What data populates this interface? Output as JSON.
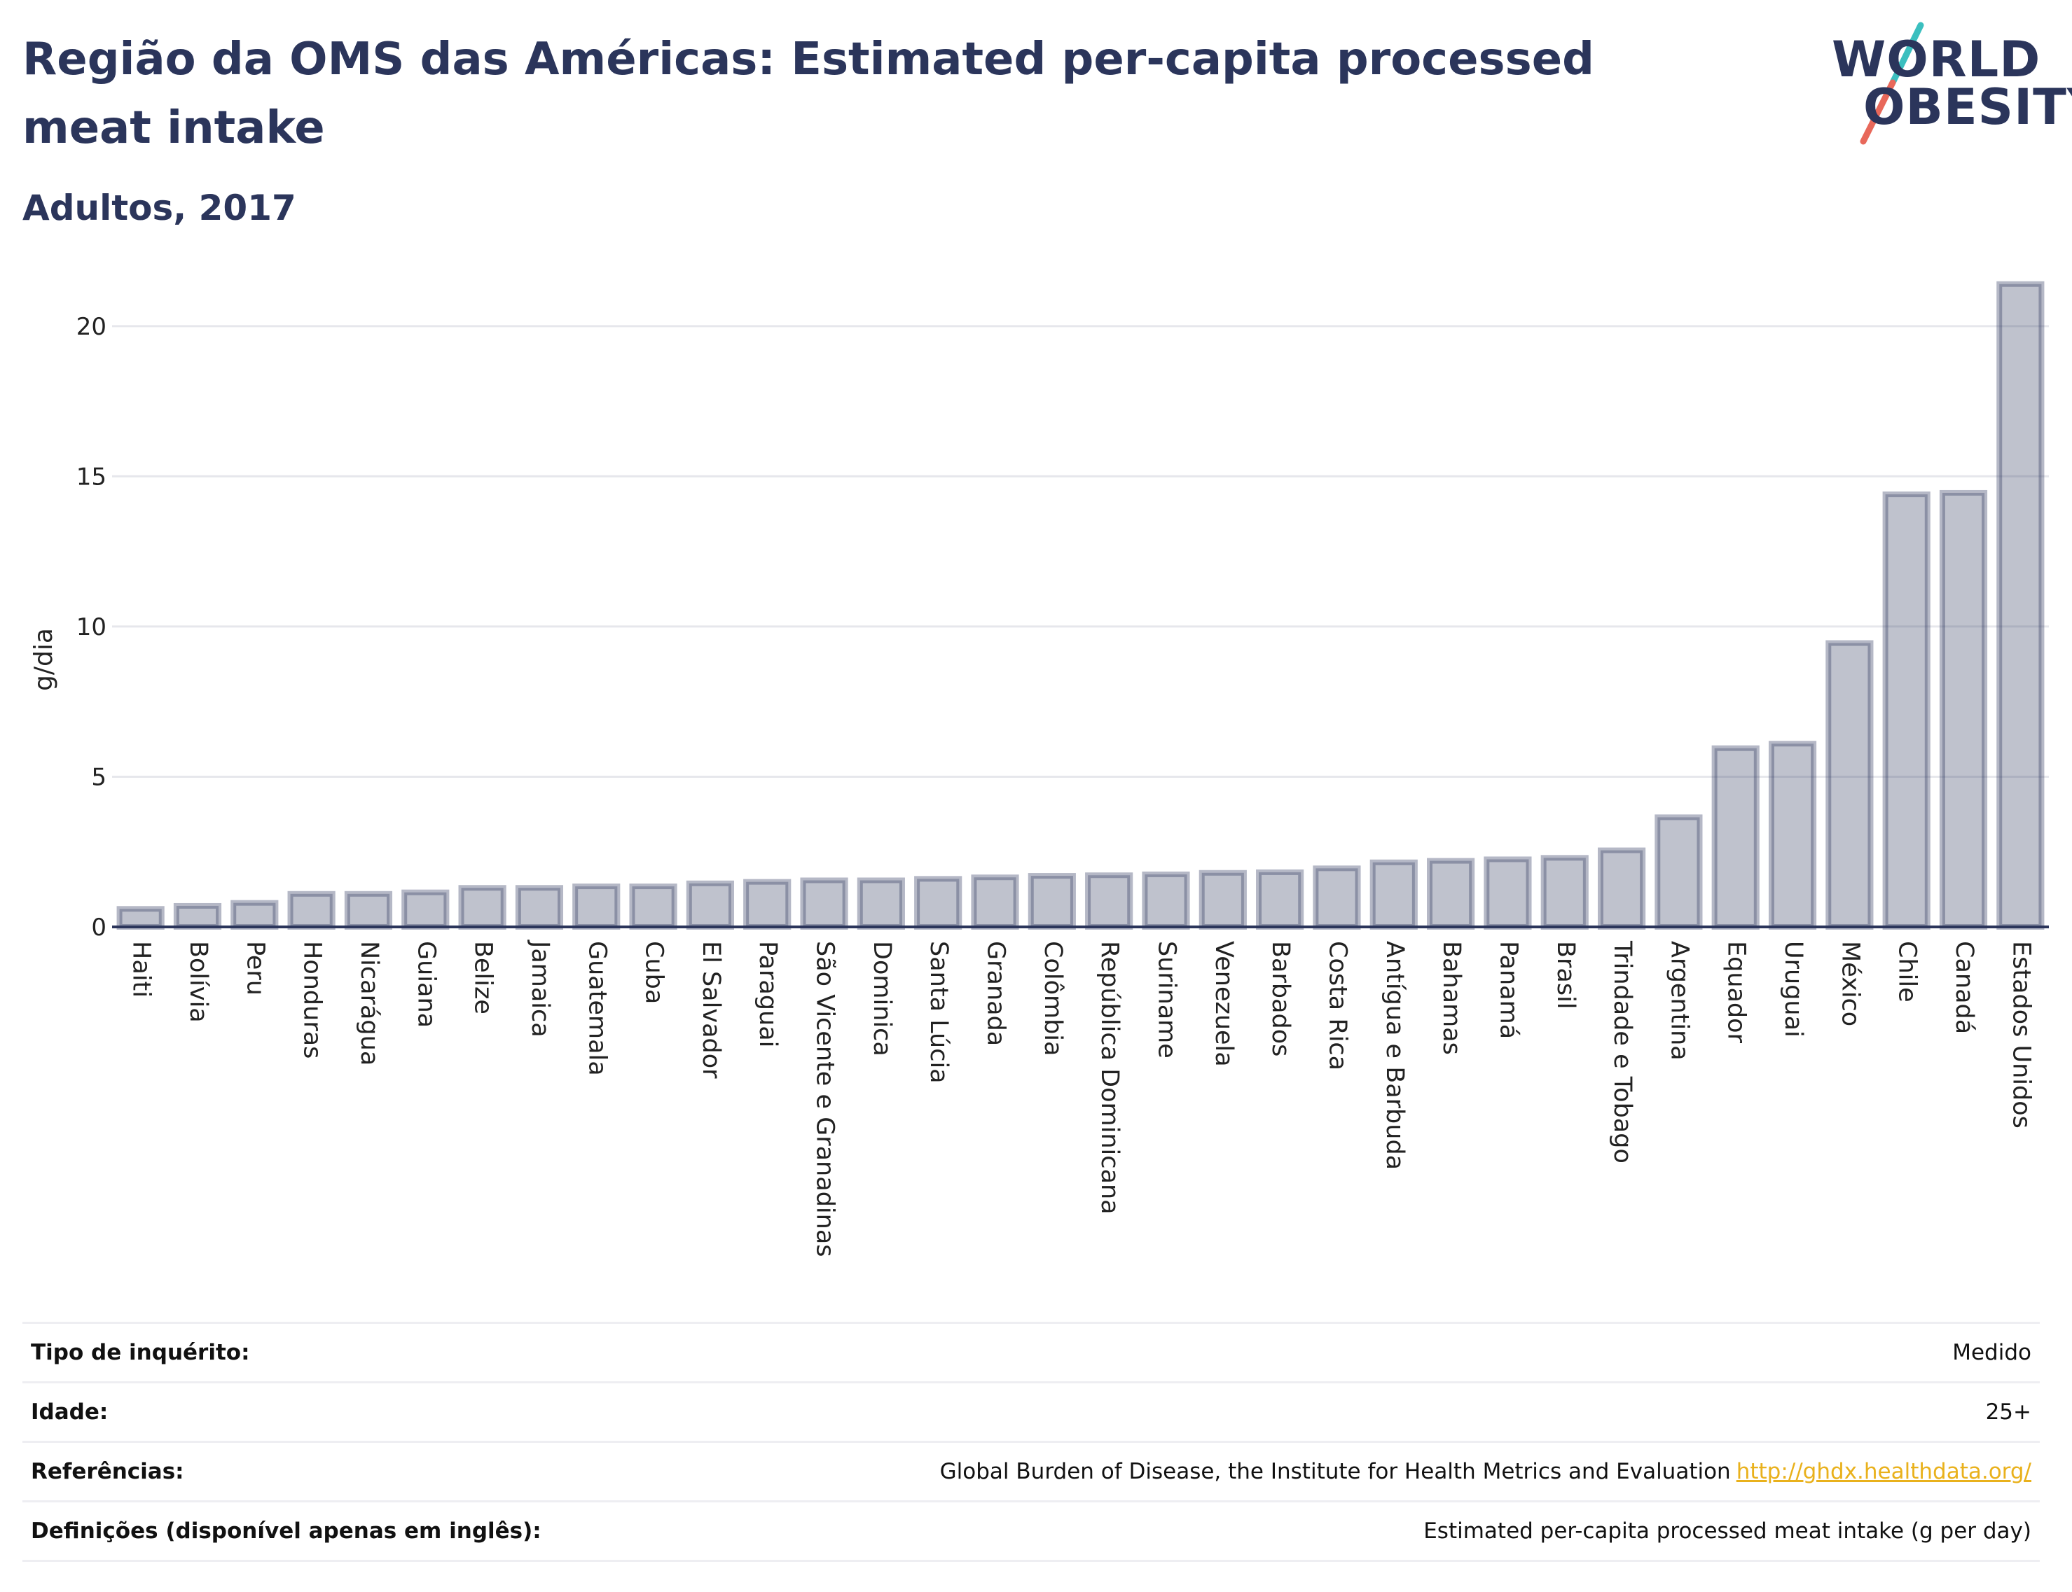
{
  "header": {
    "title": "Região da OMS das Américas: Estimated per-capita processed meat intake",
    "subtitle": "Adultos, 2017"
  },
  "logo": {
    "line1": "WORLD",
    "line2": "OBESITY",
    "colors": {
      "text": "#2b355b",
      "teal": "#3bbfbf",
      "coral": "#e8685a"
    }
  },
  "chart_data": {
    "type": "bar",
    "ylabel": "g/dia",
    "xlabel": "",
    "ylim": [
      0,
      22
    ],
    "yticks": [
      0,
      5,
      10,
      15,
      20
    ],
    "grid": true,
    "bar_color": "#2b355b",
    "categories": [
      "Haiti",
      "Bolívia",
      "Peru",
      "Honduras",
      "Nicarágua",
      "Guiana",
      "Belize",
      "Jamaica",
      "Guatemala",
      "Cuba",
      "El Salvador",
      "Paraguai",
      "São Vicente e Granadinas",
      "Dominica",
      "Santa Lúcia",
      "Granada",
      "Colômbia",
      "República Dominicana",
      "Suriname",
      "Venezuela",
      "Barbados",
      "Costa Rica",
      "Antígua e Barbuda",
      "Bahamas",
      "Panamá",
      "Brasil",
      "Trindade e Tobago",
      "Argentina",
      "Equador",
      "Uruguai",
      "México",
      "Chile",
      "Canadá",
      "Estados Unidos"
    ],
    "values": [
      0.6,
      0.7,
      0.8,
      1.1,
      1.1,
      1.15,
      1.3,
      1.3,
      1.35,
      1.35,
      1.45,
      1.5,
      1.55,
      1.55,
      1.6,
      1.65,
      1.7,
      1.72,
      1.75,
      1.8,
      1.82,
      1.95,
      2.15,
      2.2,
      2.25,
      2.3,
      2.55,
      3.65,
      5.95,
      6.1,
      9.45,
      14.4,
      14.45,
      21.4
    ]
  },
  "info": {
    "rows": [
      {
        "label": "Tipo de inquérito:",
        "value": "Medido"
      },
      {
        "label": "Idade:",
        "value": "25+"
      },
      {
        "label": "Referências:",
        "value": "Global Burden of Disease, the Institute for Health Metrics and Evaluation",
        "link": "http://ghdx.healthdata.org/"
      },
      {
        "label": "Definições (disponível apenas em inglês):",
        "value": "Estimated per-capita processed meat intake (g per day)"
      }
    ]
  }
}
